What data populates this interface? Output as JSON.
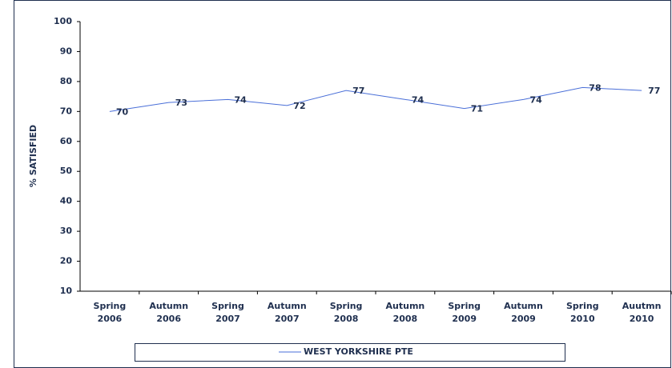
{
  "chart_data": {
    "type": "line",
    "y_label": "% SATISFIED",
    "categories": [
      "Spring 2006",
      "Autumn 2006",
      "Spring 2007",
      "Autumn 2007",
      "Spring 2008",
      "Autumn 2008",
      "Spring 2009",
      "Autumn 2009",
      "Spring 2010",
      "Auutmn 2010"
    ],
    "series": [
      {
        "name": "WEST YORKSHIRE PTE",
        "color": "#4a6fd8",
        "values": [
          70,
          73,
          74,
          72,
          77,
          74,
          71,
          74,
          78,
          77
        ]
      }
    ],
    "ylim": [
      10,
      100
    ],
    "yticks": [
      10,
      20,
      30,
      40,
      50,
      60,
      70,
      80,
      90,
      100
    ],
    "grid": false,
    "legend": "bottom"
  }
}
